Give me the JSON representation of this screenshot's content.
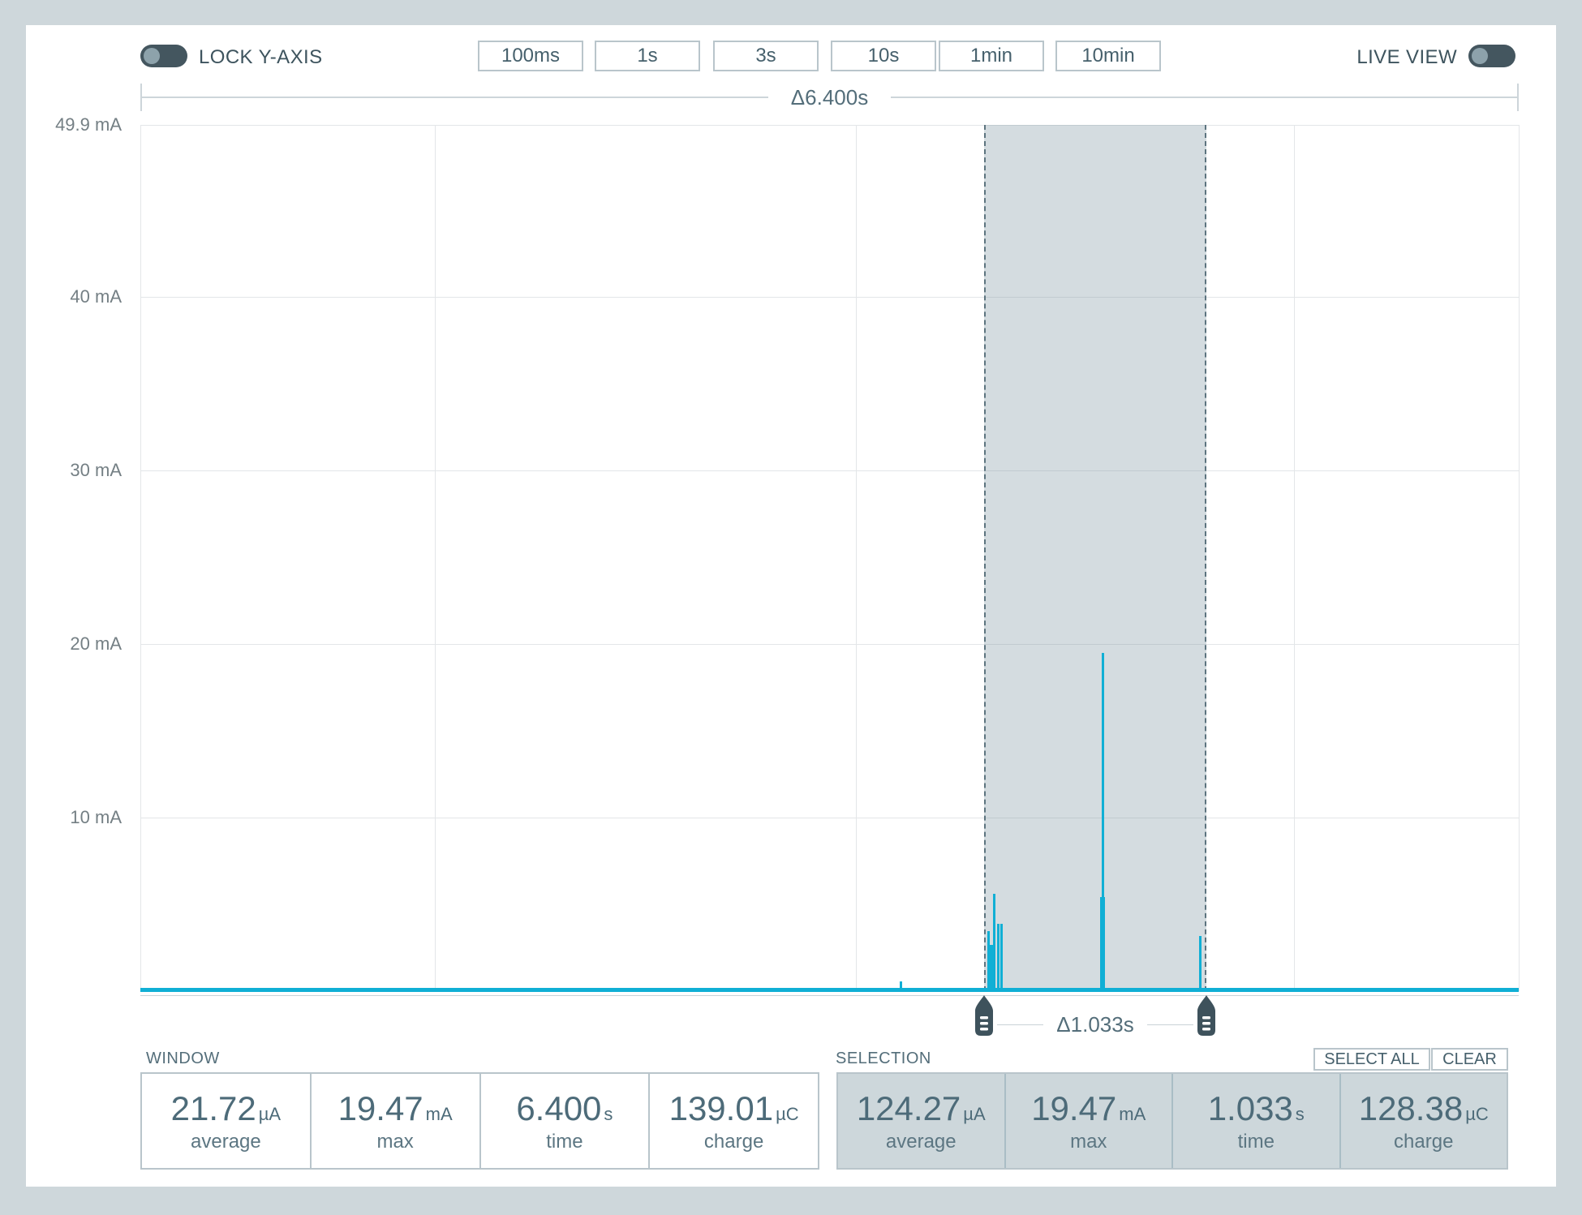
{
  "toolbar": {
    "lock_y_axis_label": "LOCK Y-AXIS",
    "live_view_label": "LIVE VIEW",
    "zoom_presets": [
      "100ms",
      "1s",
      "3s",
      "10s",
      "1min",
      "10min"
    ]
  },
  "chart_data": {
    "type": "line",
    "y_unit": "mA",
    "x_unit": "s",
    "window_s": 6.4,
    "window_delta_label": "Δ6.400s",
    "y_max_mA": 49.9,
    "y_ticks": [
      {
        "value": 49.9,
        "label": "49.9 mA"
      },
      {
        "value": 40,
        "label": "40 mA"
      },
      {
        "value": 30,
        "label": "30 mA"
      },
      {
        "value": 20,
        "label": "20 mA"
      },
      {
        "value": 10,
        "label": "10 mA"
      }
    ],
    "x_gridlines_s": [
      0,
      1.368,
      3.323,
      5.357,
      6.4
    ],
    "baseline_mA": 0.02,
    "spikes": [
      {
        "t_s": 3.53,
        "mA": 0.55,
        "w": 3
      },
      {
        "t_s": 3.94,
        "mA": 3.45,
        "w": 3
      },
      {
        "t_s": 3.951,
        "mA": 2.65,
        "w": 6
      },
      {
        "t_s": 3.965,
        "mA": 5.6,
        "w": 3
      },
      {
        "t_s": 3.982,
        "mA": 3.9,
        "w": 3
      },
      {
        "t_s": 3.997,
        "mA": 3.9,
        "w": 3
      },
      {
        "t_s": 4.466,
        "mA": 5.4,
        "w": 6
      },
      {
        "t_s": 4.469,
        "mA": 19.47,
        "w": 3
      },
      {
        "t_s": 4.921,
        "mA": 3.2,
        "w": 3
      }
    ],
    "selection": {
      "start_s": 3.917,
      "end_s": 4.95,
      "delta_label": "Δ1.033s"
    }
  },
  "stats": {
    "window": {
      "label": "WINDOW",
      "items": [
        {
          "value": "21.72",
          "unit": "µA",
          "label": "average"
        },
        {
          "value": "19.47",
          "unit": "mA",
          "label": "max"
        },
        {
          "value": "6.400",
          "unit": "s",
          "label": "time"
        },
        {
          "value": "139.01",
          "unit": "µC",
          "label": "charge"
        }
      ]
    },
    "selection": {
      "label": "SELECTION",
      "select_all_label": "SELECT ALL",
      "clear_label": "CLEAR",
      "items": [
        {
          "value": "124.27",
          "unit": "µA",
          "label": "average"
        },
        {
          "value": "19.47",
          "unit": "mA",
          "label": "max"
        },
        {
          "value": "1.033",
          "unit": "s",
          "label": "time"
        },
        {
          "value": "128.38",
          "unit": "µC",
          "label": "charge"
        }
      ]
    }
  },
  "colors": {
    "accent_blue": "#10afd5",
    "slate": "#546e7a",
    "handle": "#3e525c",
    "selection_fill": "rgba(125,149,161,0.33)",
    "toggle_track": "#44565f",
    "toggle_knob": "#8da2ab"
  }
}
